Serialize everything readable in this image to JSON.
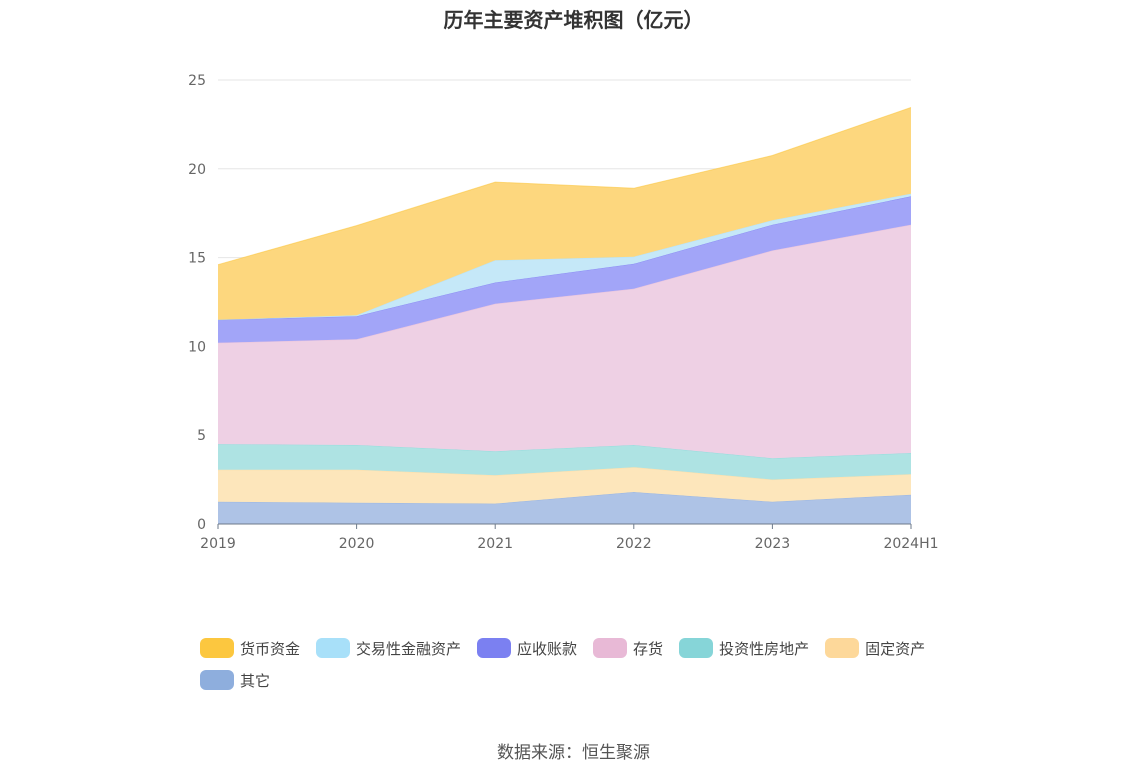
{
  "chart_data": {
    "type": "area",
    "stacked": true,
    "title": "历年主要资产堆积图（亿元）",
    "xlabel": "",
    "ylabel": "",
    "categories": [
      "2019",
      "2020",
      "2021",
      "2022",
      "2023",
      "2024H1"
    ],
    "ylim": [
      0,
      25
    ],
    "yticks": [
      "0",
      "5",
      "10",
      "15",
      "20",
      "25"
    ],
    "grid": true,
    "legend_position": "bottom",
    "series": [
      {
        "name": "其它",
        "color": "#aec3e6",
        "legend_color": "#8eaedd",
        "values": [
          1.25,
          1.2,
          1.15,
          1.8,
          1.25,
          1.65
        ]
      },
      {
        "name": "固定资产",
        "color": "#fde6bb",
        "legend_color": "#fdd89a",
        "values": [
          1.8,
          1.85,
          1.6,
          1.4,
          1.25,
          1.15
        ]
      },
      {
        "name": "投资性房地产",
        "color": "#aee3e3",
        "legend_color": "#86d5d8",
        "values": [
          1.45,
          1.4,
          1.35,
          1.25,
          1.2,
          1.2
        ]
      },
      {
        "name": "存货",
        "color": "#eed0e4",
        "legend_color": "#e8b9d6",
        "values": [
          5.7,
          5.95,
          8.3,
          8.8,
          11.7,
          12.85
        ]
      },
      {
        "name": "应收账款",
        "color": "#a2a5f8",
        "legend_color": "#7b80f1",
        "values": [
          1.3,
          1.3,
          1.2,
          1.4,
          1.45,
          1.6
        ]
      },
      {
        "name": "交易性金融资产",
        "color": "#c5e8f8",
        "legend_color": "#a8e0f9",
        "values": [
          0.0,
          0.05,
          1.25,
          0.4,
          0.25,
          0.15
        ]
      },
      {
        "name": "货币资金",
        "color": "#fdd77e",
        "legend_color": "#fcc73f",
        "values": [
          3.1,
          5.05,
          4.4,
          3.85,
          3.65,
          4.85
        ]
      }
    ],
    "legend_order": [
      "货币资金",
      "交易性金融资产",
      "应收账款",
      "存货",
      "投资性房地产",
      "固定资产",
      "其它"
    ]
  },
  "source": "数据来源：恒生聚源"
}
